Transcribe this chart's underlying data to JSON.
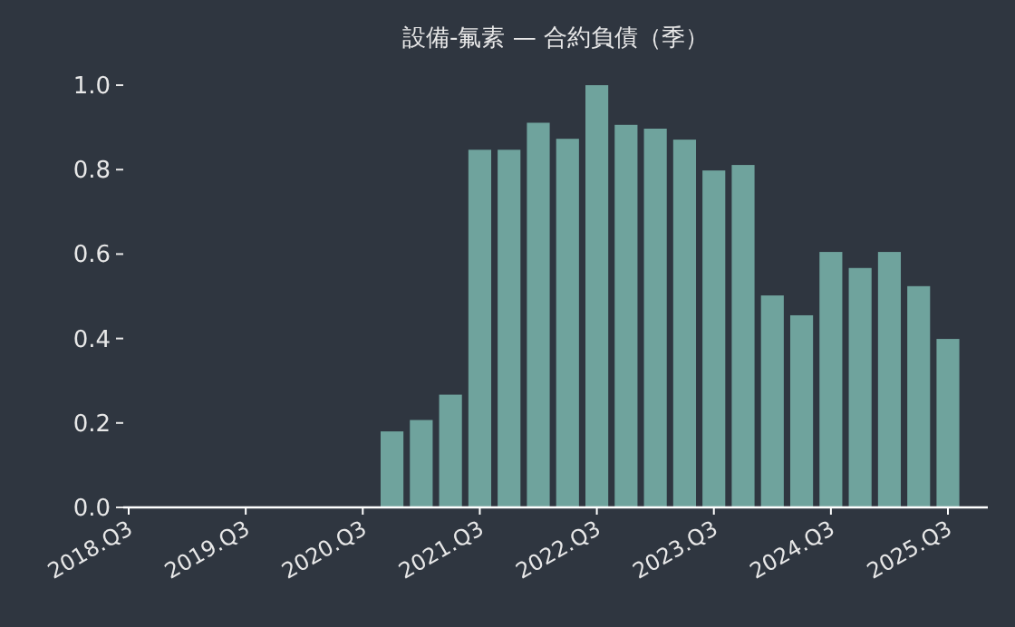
{
  "chart_data": {
    "type": "bar",
    "title": "設備-氟素 — 合約負債（季）",
    "categories": [
      "2018.Q3",
      null,
      null,
      null,
      "2019.Q3",
      null,
      null,
      null,
      "2020.Q3",
      null,
      null,
      null,
      "2021.Q3",
      null,
      null,
      null,
      "2022.Q3",
      null,
      null,
      null,
      "2023.Q3",
      null,
      null,
      null,
      "2024.Q3",
      null,
      null,
      null,
      "2025.Q3"
    ],
    "values": [
      null,
      null,
      null,
      null,
      null,
      null,
      null,
      null,
      null,
      0.18,
      0.207,
      0.267,
      0.847,
      0.847,
      0.911,
      0.873,
      1.0,
      0.906,
      0.897,
      0.871,
      0.798,
      0.811,
      0.502,
      0.455,
      0.605,
      0.567,
      0.605,
      0.524,
      0.399
    ],
    "color": "#6fa39d",
    "ylim": [
      0,
      1
    ],
    "yticks": [
      {
        "value": 0,
        "label": "0.0"
      },
      {
        "value": 0.2,
        "label": "0.2"
      },
      {
        "value": 0.4,
        "label": "0.4"
      },
      {
        "value": 0.6,
        "label": "0.6"
      },
      {
        "value": 0.8,
        "label": "0.8"
      },
      {
        "value": 1,
        "label": "1.0"
      }
    ],
    "grid": false
  }
}
